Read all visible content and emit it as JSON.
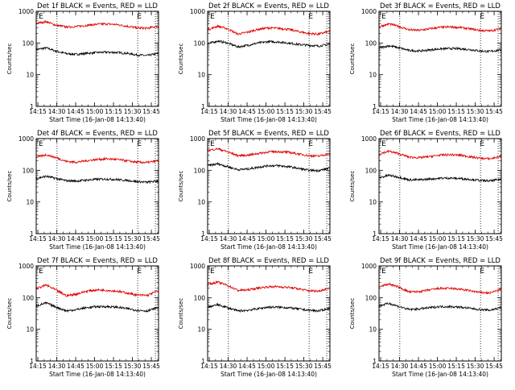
{
  "figure": {
    "start_time_label": "Start Time (16-Jan-08 14:13:40)",
    "e_marker": "E"
  },
  "chart_data": [
    {
      "type": "line",
      "title": "Det 1f BLACK = Events, RED = LLD",
      "ylabel": "Counts/sec",
      "xlabel": "Start Time (16-Jan-08 14:13:40)",
      "yscale": "log",
      "ylim": [
        1,
        1000
      ],
      "ytick_labels": [
        "1",
        "10",
        "100",
        "1000"
      ],
      "x_unit": "minutes since 14:13:40",
      "xlim": [
        0,
        97
      ],
      "xtick_labels": [
        "14:15",
        "14:30",
        "14:45",
        "15:00",
        "15:15",
        "15:30",
        "15:45"
      ],
      "xtick_values": [
        1.3,
        16.3,
        31.3,
        46.3,
        61.3,
        76.3,
        91.3
      ],
      "vlines": [
        16.5,
        80.5,
        94.5
      ],
      "markers": [
        {
          "text": "E",
          "x": 2
        },
        {
          "text": "E",
          "x": 80
        }
      ],
      "colors": {
        "events": "#000000",
        "lld": "#e00000"
      },
      "series": [
        {
          "name": "BLACK = Events",
          "color": "#000000",
          "x": [
            0,
            8,
            16,
            24,
            32,
            40,
            48,
            56,
            64,
            72,
            80,
            88,
            96
          ],
          "values": [
            62,
            70,
            55,
            46,
            44,
            47,
            50,
            51,
            50,
            47,
            42,
            40,
            46
          ]
        },
        {
          "name": "RED = LLD",
          "color": "#e00000",
          "x": [
            0,
            8,
            16,
            24,
            32,
            40,
            48,
            56,
            64,
            72,
            80,
            88,
            96
          ],
          "values": [
            420,
            470,
            360,
            320,
            330,
            360,
            390,
            400,
            380,
            340,
            300,
            290,
            340
          ]
        }
      ]
    },
    {
      "type": "line",
      "title": "Det 2f BLACK = Events, RED = LLD",
      "ylabel": "Counts/sec",
      "xlabel": "Start Time (16-Jan-08 14:13:40)",
      "yscale": "log",
      "ylim": [
        1,
        1000
      ],
      "ytick_labels": [
        "1",
        "10",
        "100",
        "1000"
      ],
      "xlim": [
        0,
        97
      ],
      "xtick_labels": [
        "14:15",
        "14:30",
        "14:45",
        "15:00",
        "15:15",
        "15:30",
        "15:45"
      ],
      "xtick_values": [
        1.3,
        16.3,
        31.3,
        46.3,
        61.3,
        76.3,
        91.3
      ],
      "vlines": [
        16.5,
        80.5,
        94.5
      ],
      "markers": [
        {
          "text": "E",
          "x": 2
        },
        {
          "text": "E",
          "x": 80
        }
      ],
      "series": [
        {
          "name": "BLACK = Events",
          "color": "#000000",
          "x": [
            0,
            8,
            16,
            24,
            32,
            40,
            48,
            56,
            64,
            72,
            80,
            88,
            96
          ],
          "values": [
            95,
            115,
            100,
            75,
            85,
            100,
            110,
            108,
            100,
            90,
            85,
            80,
            90
          ]
        },
        {
          "name": "RED = LLD",
          "color": "#e00000",
          "x": [
            0,
            8,
            16,
            24,
            32,
            40,
            48,
            56,
            64,
            72,
            80,
            88,
            96
          ],
          "values": [
            260,
            340,
            280,
            190,
            220,
            270,
            300,
            290,
            270,
            230,
            200,
            190,
            230
          ]
        }
      ]
    },
    {
      "type": "line",
      "title": "Det 3f BLACK = Events, RED = LLD",
      "ylabel": "Counts/sec",
      "xlabel": "Start Time (16-Jan-08 14:13:40)",
      "yscale": "log",
      "ylim": [
        1,
        1000
      ],
      "ytick_labels": [
        "1",
        "10",
        "100",
        "1000"
      ],
      "xlim": [
        0,
        97
      ],
      "xtick_labels": [
        "14:15",
        "14:30",
        "14:45",
        "15:00",
        "15:15",
        "15:30",
        "15:45"
      ],
      "xtick_values": [
        1.3,
        16.3,
        31.3,
        46.3,
        61.3,
        76.3,
        91.3
      ],
      "vlines": [
        16.5,
        80.5,
        94.5
      ],
      "markers": [
        {
          "text": "E",
          "x": 2
        },
        {
          "text": "E",
          "x": 80
        }
      ],
      "series": [
        {
          "name": "BLACK = Events",
          "color": "#000000",
          "x": [
            0,
            8,
            16,
            24,
            32,
            40,
            48,
            56,
            64,
            72,
            80,
            88,
            96
          ],
          "values": [
            70,
            82,
            70,
            58,
            56,
            60,
            65,
            67,
            66,
            62,
            56,
            54,
            60
          ]
        },
        {
          "name": "RED = LLD",
          "color": "#e00000",
          "x": [
            0,
            8,
            16,
            24,
            32,
            40,
            48,
            56,
            64,
            72,
            80,
            88,
            96
          ],
          "values": [
            330,
            400,
            330,
            260,
            250,
            280,
            310,
            320,
            310,
            280,
            250,
            240,
            280
          ]
        }
      ]
    },
    {
      "type": "line",
      "title": "Det 4f BLACK = Events, RED = LLD",
      "ylabel": "Counts/sec",
      "xlabel": "Start Time (16-Jan-08 14:13:40)",
      "yscale": "log",
      "ylim": [
        1,
        1000
      ],
      "ytick_labels": [
        "1",
        "10",
        "100",
        "1000"
      ],
      "xlim": [
        0,
        97
      ],
      "xtick_labels": [
        "14:15",
        "14:30",
        "14:45",
        "15:00",
        "15:15",
        "15:30",
        "15:45"
      ],
      "xtick_values": [
        1.3,
        16.3,
        31.3,
        46.3,
        61.3,
        76.3,
        91.3
      ],
      "vlines": [
        16.5,
        80.5,
        94.5
      ],
      "markers": [
        {
          "text": "E",
          "x": 2
        },
        {
          "text": "E",
          "x": 80
        }
      ],
      "series": [
        {
          "name": "BLACK = Events",
          "color": "#000000",
          "x": [
            0,
            8,
            16,
            24,
            32,
            40,
            48,
            56,
            64,
            72,
            80,
            88,
            96
          ],
          "values": [
            55,
            65,
            55,
            47,
            46,
            49,
            52,
            53,
            51,
            48,
            44,
            42,
            46
          ]
        },
        {
          "name": "RED = LLD",
          "color": "#e00000",
          "x": [
            0,
            8,
            16,
            24,
            32,
            40,
            48,
            56,
            64,
            72,
            80,
            88,
            96
          ],
          "values": [
            260,
            310,
            250,
            190,
            180,
            200,
            220,
            230,
            220,
            200,
            180,
            175,
            200
          ]
        }
      ]
    },
    {
      "type": "line",
      "title": "Det 5f BLACK = Events, RED = LLD",
      "ylabel": "Counts/sec",
      "xlabel": "Start Time (16-Jan-08 14:13:40)",
      "yscale": "log",
      "ylim": [
        1,
        1000
      ],
      "ytick_labels": [
        "1",
        "10",
        "100",
        "1000"
      ],
      "xlim": [
        0,
        97
      ],
      "xtick_labels": [
        "14:15",
        "14:30",
        "14:45",
        "15:00",
        "15:15",
        "15:30",
        "15:45"
      ],
      "xtick_values": [
        1.3,
        16.3,
        31.3,
        46.3,
        61.3,
        76.3,
        91.3
      ],
      "vlines": [
        16.5,
        80.5,
        94.5
      ],
      "markers": [
        {
          "text": "E",
          "x": 2
        },
        {
          "text": "E",
          "x": 80
        }
      ],
      "series": [
        {
          "name": "BLACK = Events",
          "color": "#000000",
          "x": [
            0,
            8,
            16,
            24,
            32,
            40,
            48,
            56,
            64,
            72,
            80,
            88,
            96
          ],
          "values": [
            140,
            160,
            130,
            105,
            110,
            125,
            140,
            140,
            130,
            115,
            100,
            98,
            115
          ]
        },
        {
          "name": "RED = LLD",
          "color": "#e00000",
          "x": [
            0,
            8,
            16,
            24,
            32,
            40,
            48,
            56,
            64,
            72,
            80,
            88,
            96
          ],
          "values": [
            420,
            480,
            380,
            290,
            300,
            340,
            380,
            390,
            370,
            330,
            290,
            280,
            330
          ]
        }
      ]
    },
    {
      "type": "line",
      "title": "Det 6f BLACK = Events, RED = LLD",
      "ylabel": "Counts/sec",
      "xlabel": "Start Time (16-Jan-08 14:13:40)",
      "yscale": "log",
      "ylim": [
        1,
        1000
      ],
      "ytick_labels": [
        "1",
        "10",
        "100",
        "1000"
      ],
      "xlim": [
        0,
        97
      ],
      "xtick_labels": [
        "14:15",
        "14:30",
        "14:45",
        "15:00",
        "15:15",
        "15:30",
        "15:45"
      ],
      "xtick_values": [
        1.3,
        16.3,
        31.3,
        46.3,
        61.3,
        76.3,
        91.3
      ],
      "vlines": [
        16.5,
        80.5,
        94.5
      ],
      "markers": [
        {
          "text": "E",
          "x": 2
        },
        {
          "text": "E",
          "x": 80
        }
      ],
      "series": [
        {
          "name": "BLACK = Events",
          "color": "#000000",
          "x": [
            0,
            8,
            16,
            24,
            32,
            40,
            48,
            56,
            64,
            72,
            80,
            88,
            96
          ],
          "values": [
            58,
            70,
            60,
            50,
            50,
            53,
            56,
            57,
            55,
            52,
            48,
            46,
            52
          ]
        },
        {
          "name": "RED = LLD",
          "color": "#e00000",
          "x": [
            0,
            8,
            16,
            24,
            32,
            40,
            48,
            56,
            64,
            72,
            80,
            88,
            96
          ],
          "values": [
            330,
            400,
            330,
            260,
            250,
            270,
            300,
            310,
            300,
            270,
            240,
            230,
            270
          ]
        }
      ]
    },
    {
      "type": "line",
      "title": "Det 7f BLACK = Events, RED = LLD",
      "ylabel": "Counts/sec",
      "xlabel": "Start Time (16-Jan-08 14:13:40)",
      "yscale": "log",
      "ylim": [
        1,
        1000
      ],
      "ytick_labels": [
        "1",
        "10",
        "100",
        "1000"
      ],
      "xlim": [
        0,
        97
      ],
      "xtick_labels": [
        "14:15",
        "14:30",
        "14:45",
        "15:00",
        "15:15",
        "15:30",
        "15:45"
      ],
      "xtick_values": [
        1.3,
        16.3,
        31.3,
        46.3,
        61.3,
        76.3,
        91.3
      ],
      "vlines": [
        16.5,
        80.5,
        94.5
      ],
      "markers": [
        {
          "text": "E",
          "x": 2
        },
        {
          "text": "E",
          "x": 80
        }
      ],
      "series": [
        {
          "name": "BLACK = Events",
          "color": "#000000",
          "x": [
            0,
            8,
            16,
            24,
            32,
            40,
            48,
            56,
            64,
            72,
            80,
            88,
            96
          ],
          "values": [
            55,
            68,
            50,
            38,
            42,
            48,
            52,
            52,
            50,
            45,
            40,
            38,
            48
          ]
        },
        {
          "name": "RED = LLD",
          "color": "#e00000",
          "x": [
            0,
            8,
            16,
            24,
            32,
            40,
            48,
            56,
            64,
            72,
            80,
            88,
            96
          ],
          "values": [
            190,
            250,
            170,
            115,
            130,
            160,
            175,
            170,
            160,
            140,
            120,
            118,
            160
          ]
        }
      ]
    },
    {
      "type": "line",
      "title": "Det 8f BLACK = Events, RED = LLD",
      "ylabel": "Counts/sec",
      "xlabel": "Start Time (16-Jan-08 14:13:40)",
      "yscale": "log",
      "ylim": [
        1,
        1000
      ],
      "ytick_labels": [
        "1",
        "10",
        "100",
        "1000"
      ],
      "xlim": [
        0,
        97
      ],
      "xtick_labels": [
        "14:15",
        "14:30",
        "14:45",
        "15:00",
        "15:15",
        "15:30",
        "15:45"
      ],
      "xtick_values": [
        1.3,
        16.3,
        31.3,
        46.3,
        61.3,
        76.3,
        91.3
      ],
      "vlines": [
        16.5,
        80.5,
        94.5
      ],
      "markers": [
        {
          "text": "E",
          "x": 2
        },
        {
          "text": "E",
          "x": 80
        }
      ],
      "series": [
        {
          "name": "BLACK = Events",
          "color": "#000000",
          "x": [
            0,
            8,
            16,
            24,
            32,
            40,
            48,
            56,
            64,
            72,
            80,
            88,
            96
          ],
          "values": [
            50,
            60,
            48,
            38,
            40,
            45,
            50,
            50,
            48,
            44,
            40,
            38,
            45
          ]
        },
        {
          "name": "RED = LLD",
          "color": "#e00000",
          "x": [
            0,
            8,
            16,
            24,
            32,
            40,
            48,
            56,
            64,
            72,
            80,
            88,
            96
          ],
          "values": [
            260,
            310,
            240,
            170,
            175,
            200,
            220,
            220,
            210,
            190,
            165,
            160,
            200
          ]
        }
      ]
    },
    {
      "type": "line",
      "title": "Det 9f BLACK = Events, RED = LLD",
      "ylabel": "Counts/sec",
      "xlabel": "Start Time (16-Jan-08 14:13:40)",
      "yscale": "log",
      "ylim": [
        1,
        1000
      ],
      "ytick_labels": [
        "1",
        "10",
        "100",
        "1000"
      ],
      "xlim": [
        0,
        97
      ],
      "xtick_labels": [
        "14:15",
        "14:30",
        "14:45",
        "15:00",
        "15:15",
        "15:30",
        "15:45"
      ],
      "xtick_values": [
        1.3,
        16.3,
        31.3,
        46.3,
        61.3,
        76.3,
        91.3
      ],
      "vlines": [
        16.5,
        80.5,
        94.5
      ],
      "markers": [
        {
          "text": "E",
          "x": 2
        },
        {
          "text": "E",
          "x": 80
        }
      ],
      "series": [
        {
          "name": "BLACK = Events",
          "color": "#000000",
          "x": [
            0,
            8,
            16,
            24,
            32,
            40,
            48,
            56,
            64,
            72,
            80,
            88,
            96
          ],
          "values": [
            55,
            66,
            52,
            42,
            44,
            48,
            52,
            52,
            50,
            46,
            42,
            40,
            48
          ]
        },
        {
          "name": "RED = LLD",
          "color": "#e00000",
          "x": [
            0,
            8,
            16,
            24,
            32,
            40,
            48,
            56,
            64,
            72,
            80,
            88,
            96
          ],
          "values": [
            220,
            270,
            210,
            150,
            155,
            175,
            195,
            195,
            185,
            165,
            145,
            140,
            180
          ]
        }
      ]
    }
  ]
}
